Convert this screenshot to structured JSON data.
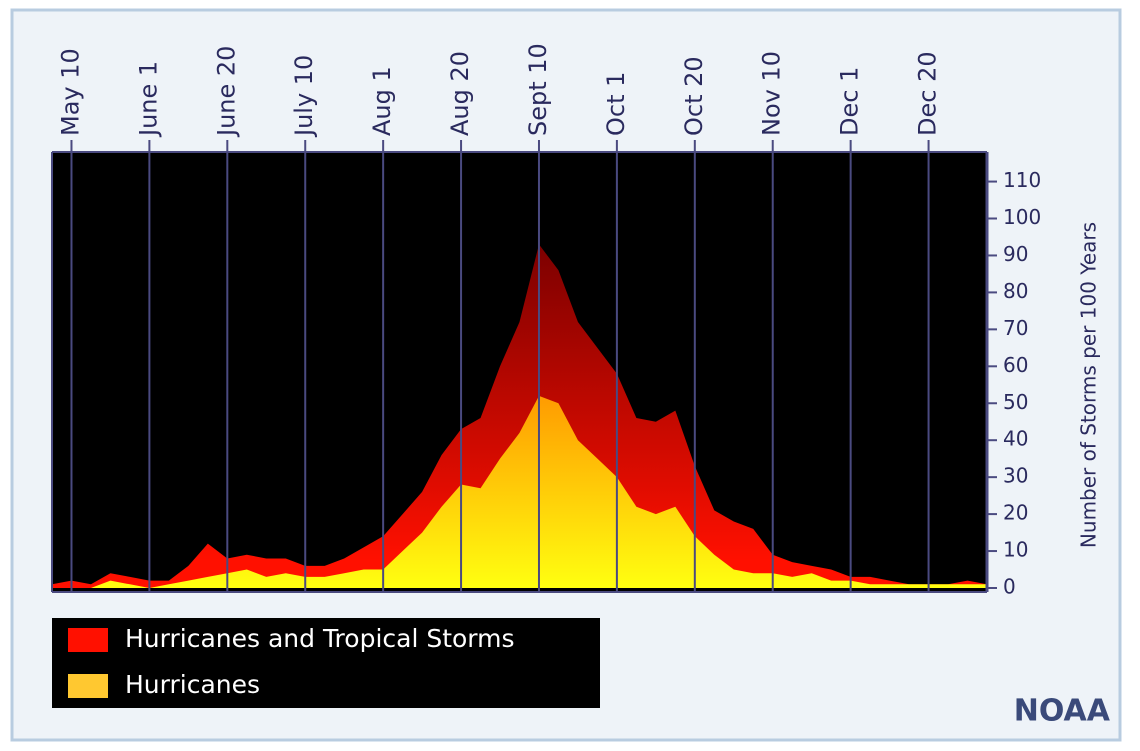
{
  "chart_data": {
    "type": "area",
    "y_axis_label": "Number of Storms per 100 Years",
    "categories": [
      null,
      "May 10",
      null,
      null,
      null,
      "June 1",
      null,
      null,
      null,
      "June 20",
      null,
      null,
      null,
      "July 10",
      null,
      null,
      null,
      "Aug 1",
      null,
      null,
      null,
      "Aug 20",
      null,
      null,
      null,
      "Sept 10",
      null,
      null,
      null,
      "Oct 1",
      null,
      null,
      null,
      "Oct 20",
      null,
      null,
      null,
      "Nov 10",
      null,
      null,
      null,
      "Dec 1",
      null,
      null,
      null,
      "Dec 20",
      null,
      null,
      null
    ],
    "series": [
      {
        "name": "Hurricanes and Tropical Storms",
        "color": "#ff1000",
        "values": [
          1,
          2,
          1,
          4,
          3,
          2,
          2,
          6,
          12,
          8,
          9,
          8,
          8,
          6,
          6,
          8,
          11,
          14,
          20,
          26,
          36,
          43,
          46,
          60,
          72,
          93,
          86,
          72,
          65,
          58,
          46,
          45,
          48,
          33,
          21,
          18,
          16,
          9,
          7,
          6,
          5,
          3,
          3,
          2,
          1,
          1,
          1,
          2,
          1
        ]
      },
      {
        "name": "Hurricanes",
        "color": "#ffc830",
        "values": [
          0,
          0,
          0,
          2,
          1,
          0,
          1,
          2,
          3,
          4,
          5,
          3,
          4,
          3,
          3,
          4,
          5,
          5,
          10,
          15,
          22,
          28,
          27,
          35,
          42,
          52,
          50,
          40,
          35,
          30,
          22,
          20,
          22,
          14,
          9,
          5,
          4,
          4,
          3,
          4,
          2,
          2,
          1,
          1,
          1,
          1,
          1,
          1,
          1
        ]
      }
    ],
    "ylim": [
      0,
      118
    ],
    "yticks": [
      0,
      10,
      20,
      30,
      40,
      50,
      60,
      70,
      80,
      90,
      100,
      110
    ],
    "grid": true,
    "legend": "bottom-left",
    "source": "NOAA"
  }
}
